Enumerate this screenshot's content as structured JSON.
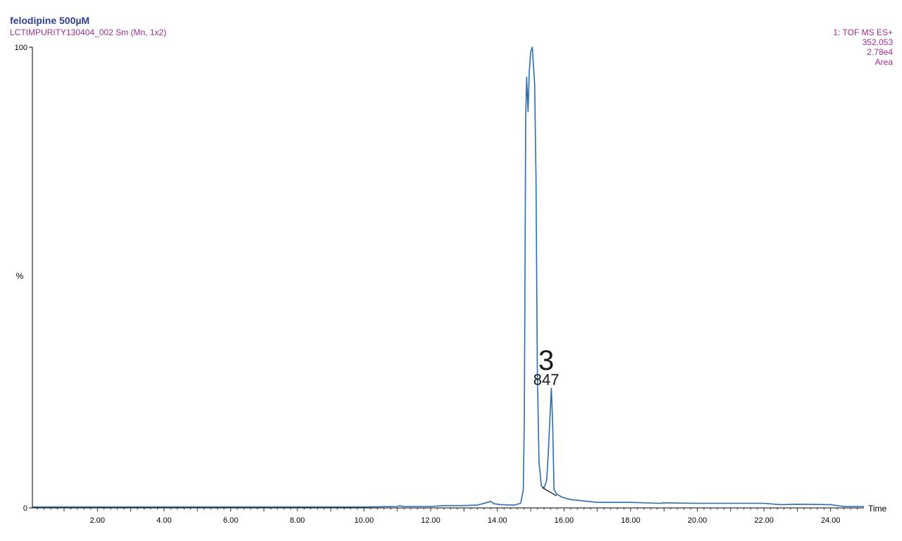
{
  "header": {
    "title": "felodipine 500µM",
    "subtitle": "LCTIMPURITY130404_002 Sm (Mn, 1x2)",
    "info_lines": [
      "1: TOF MS ES+",
      "352.053",
      "2.78e4",
      "Area"
    ]
  },
  "colors": {
    "trace": "#2c6cb0",
    "axis": "#000000",
    "baseline": "#000000",
    "title": "#2d3f8f",
    "info": "#9b2f8f"
  },
  "chart_data": {
    "type": "line",
    "title": "felodipine 500µM",
    "xlabel": "Time",
    "ylabel": "%",
    "xlim": [
      0.05,
      25.0
    ],
    "ylim": [
      0,
      100
    ],
    "x_ticks": [
      "2.00",
      "4.00",
      "6.00",
      "8.00",
      "10.00",
      "12.00",
      "14.00",
      "16.00",
      "18.00",
      "20.00",
      "22.00",
      "24.00"
    ],
    "y_ticks": [
      "0",
      "100"
    ],
    "grid": false,
    "series": [
      {
        "x": [
          0.05,
          2.0,
          5.0,
          8.0,
          10.0,
          11.0,
          11.08,
          11.15,
          11.4,
          12.0,
          12.4,
          13.0,
          13.4,
          13.7,
          13.8,
          13.9,
          14.1,
          14.5,
          14.7,
          14.78,
          14.81,
          14.85,
          14.88,
          14.92,
          14.96,
          15.0,
          15.05,
          15.12,
          15.16,
          15.2,
          15.25,
          15.32,
          15.4,
          15.48,
          15.53,
          15.58,
          15.62,
          15.66,
          15.7,
          15.78,
          15.95,
          16.2,
          16.6,
          17.0,
          17.5,
          18.0,
          18.9,
          19.0,
          20.0,
          21.0,
          22.0,
          22.5,
          23.0,
          24.0,
          24.4,
          25.0
        ],
        "y": [
          0.2,
          0.2,
          0.2,
          0.2,
          0.2,
          0.3,
          0.5,
          0.3,
          0.3,
          0.3,
          0.5,
          0.5,
          0.6,
          1.2,
          1.4,
          0.9,
          0.7,
          0.6,
          1.0,
          4.0,
          20.0,
          85.0,
          93.5,
          86.0,
          95.0,
          99.0,
          100.0,
          92.0,
          72.0,
          30.0,
          10.0,
          4.8,
          4.3,
          6.0,
          12.0,
          20.0,
          26.0,
          18.0,
          4.0,
          3.0,
          2.3,
          1.8,
          1.5,
          1.2,
          1.2,
          1.2,
          1.0,
          1.1,
          1.0,
          1.0,
          1.0,
          0.7,
          0.8,
          0.7,
          0.3,
          0.3
        ]
      }
    ],
    "baseline_segments": [
      {
        "x": [
          15.35,
          15.78
        ],
        "y": [
          4.4,
          2.6
        ]
      }
    ],
    "annotations": [
      {
        "x": 15.72,
        "y": 30.0,
        "label": "3",
        "size": "large"
      },
      {
        "x": 15.72,
        "y": 26.7,
        "label": "847",
        "size": "medium"
      }
    ]
  }
}
